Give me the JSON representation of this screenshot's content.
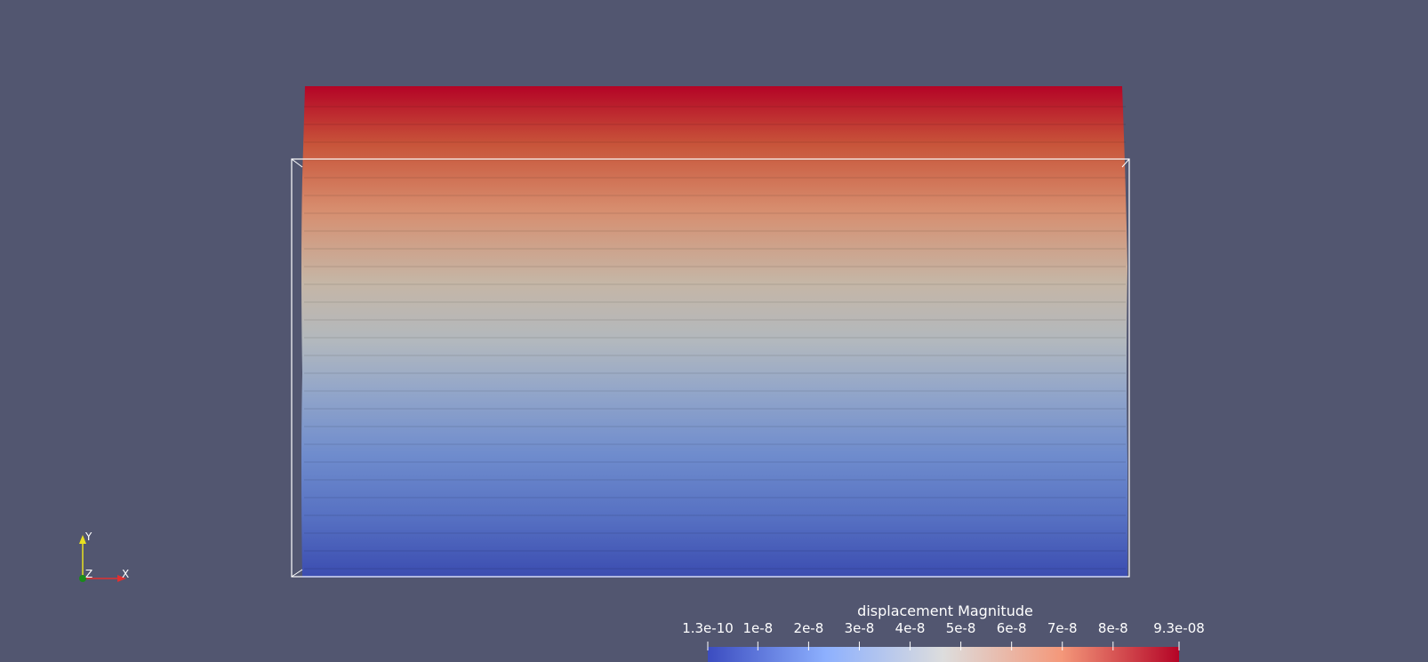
{
  "view": {
    "background_color": "#525670"
  },
  "mesh": {
    "color_top": "#b40426",
    "color_bottom": "#3b4cc0",
    "outline_color": "#ffffff"
  },
  "colorbar": {
    "title": "displacement Magnitude",
    "range": [
      1.3e-10,
      9.3e-08
    ],
    "tick_labels": [
      "1.3e-10",
      "1e-8",
      "2e-8",
      "3e-8",
      "4e-8",
      "5e-8",
      "6e-8",
      "7e-8",
      "8e-8",
      "9.3e-08"
    ],
    "tick_values": [
      1.3e-10,
      1e-08,
      2e-08,
      3e-08,
      4e-08,
      5e-08,
      6e-08,
      7e-08,
      8e-08,
      9.3e-08
    ],
    "colormap": "Cool to Warm",
    "stops": [
      "#3b4cc0",
      "#8db0fe",
      "#dddddd",
      "#f4987a",
      "#b40426"
    ]
  },
  "orientation_axes": {
    "x_label": "X",
    "y_label": "Y",
    "z_label": "Z",
    "x_color": "#e03030",
    "y_color": "#e8e020",
    "z_color": "#1a8a1a"
  }
}
